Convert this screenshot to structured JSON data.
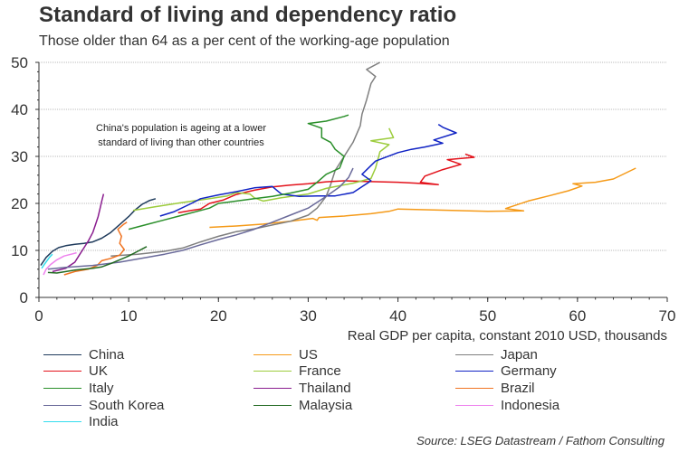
{
  "chart_data": {
    "type": "line",
    "title": "Standard of living and dependency ratio",
    "subtitle": "Those older than 64 as a per cent of the working-age population",
    "xlabel": "Real GDP per capita, constant 2010 USD, thousands",
    "ylabel": "",
    "xlim": [
      0,
      70
    ],
    "ylim": [
      0,
      50
    ],
    "xticks": [
      0,
      10,
      20,
      30,
      40,
      50,
      60,
      70
    ],
    "yticks": [
      0,
      10,
      20,
      30,
      40,
      50
    ],
    "grid": "horizontal-dotted",
    "legend_position": "bottom",
    "annotation": [
      "China's population is ageing at a lower",
      "standard of living than other countries"
    ],
    "source": "Source: LSEG Datastream / Fathom Consulting",
    "series": [
      {
        "name": "China",
        "color": "#1f3b5c",
        "points": [
          [
            0.2,
            6.8
          ],
          [
            0.8,
            8.5
          ],
          [
            1.5,
            9.8
          ],
          [
            2.2,
            10.6
          ],
          [
            3,
            11
          ],
          [
            4,
            11.3
          ],
          [
            5,
            11.5
          ],
          [
            6,
            11.8
          ],
          [
            7,
            12.6
          ],
          [
            8,
            13.8
          ],
          [
            9,
            15.5
          ],
          [
            10,
            17.2
          ],
          [
            10.7,
            18.6
          ],
          [
            11.5,
            19.8
          ],
          [
            12.3,
            20.6
          ],
          [
            13,
            21
          ]
        ]
      },
      {
        "name": "US",
        "color": "#f59a18",
        "points": [
          [
            19,
            14.9
          ],
          [
            22,
            15.2
          ],
          [
            25,
            15.6
          ],
          [
            28,
            16.2
          ],
          [
            30.5,
            16.8
          ],
          [
            31,
            16.4
          ],
          [
            31.2,
            17
          ],
          [
            34,
            17.3
          ],
          [
            37,
            17.8
          ],
          [
            39,
            18.3
          ],
          [
            40,
            18.8
          ],
          [
            42,
            18.7
          ],
          [
            46,
            18.5
          ],
          [
            50,
            18.3
          ],
          [
            54,
            18.4
          ],
          [
            52,
            18.9
          ],
          [
            54.5,
            20.5
          ],
          [
            57,
            21.7
          ],
          [
            59,
            22.7
          ],
          [
            60.5,
            23.7
          ],
          [
            59.5,
            24.2
          ],
          [
            62,
            24.5
          ],
          [
            64,
            25.2
          ],
          [
            66.5,
            27.5
          ]
        ]
      },
      {
        "name": "Japan",
        "color": "#7f7f7f",
        "points": [
          [
            8,
            8.8
          ],
          [
            11,
            9.2
          ],
          [
            14,
            9.8
          ],
          [
            16,
            10.5
          ],
          [
            18,
            11.8
          ],
          [
            20,
            13
          ],
          [
            22,
            14
          ],
          [
            24,
            14.6
          ],
          [
            26,
            15.4
          ],
          [
            28,
            16.2
          ],
          [
            30,
            17.5
          ],
          [
            31,
            19
          ],
          [
            32,
            21.5
          ],
          [
            32.5,
            24
          ],
          [
            33,
            27
          ],
          [
            34,
            30
          ],
          [
            35,
            33
          ],
          [
            35.8,
            36.5
          ],
          [
            36,
            39
          ],
          [
            36.5,
            42
          ],
          [
            37,
            45.5
          ],
          [
            37.5,
            47
          ],
          [
            36.5,
            48.5
          ],
          [
            38,
            50
          ]
        ]
      },
      {
        "name": "UK",
        "color": "#e3121b",
        "points": [
          [
            15.5,
            18
          ],
          [
            17,
            18.5
          ],
          [
            18,
            18.8
          ],
          [
            19,
            20
          ],
          [
            20.5,
            20.7
          ],
          [
            22,
            21.9
          ],
          [
            24,
            22.8
          ],
          [
            26,
            23.5
          ],
          [
            28,
            23.9
          ],
          [
            30,
            24.2
          ],
          [
            32,
            24.6
          ],
          [
            34,
            24.8
          ],
          [
            36,
            24.7
          ],
          [
            38,
            24.6
          ],
          [
            40,
            24.5
          ],
          [
            42,
            24.3
          ],
          [
            43,
            24.2
          ],
          [
            44.5,
            24
          ],
          [
            42.5,
            24.5
          ],
          [
            43,
            25.8
          ],
          [
            45,
            27.2
          ],
          [
            47,
            28.3
          ],
          [
            45.5,
            29.3
          ],
          [
            48.5,
            29.8
          ],
          [
            47.5,
            30.5
          ]
        ]
      },
      {
        "name": "France",
        "color": "#9ccc3c",
        "points": [
          [
            10.5,
            18.5
          ],
          [
            13,
            19.3
          ],
          [
            16,
            20.2
          ],
          [
            19,
            21
          ],
          [
            21,
            21.6
          ],
          [
            22,
            22.3
          ],
          [
            23.5,
            22
          ],
          [
            24,
            21.2
          ],
          [
            25,
            20.5
          ],
          [
            27,
            21.2
          ],
          [
            30,
            22
          ],
          [
            32,
            23.2
          ],
          [
            35,
            24.3
          ],
          [
            37,
            25.3
          ],
          [
            37.5,
            27.5
          ],
          [
            38,
            31
          ],
          [
            39,
            32.5
          ],
          [
            37,
            33.3
          ],
          [
            39.5,
            34
          ],
          [
            39,
            36
          ]
        ]
      },
      {
        "name": "Germany",
        "color": "#1023c4",
        "points": [
          [
            13.5,
            17.3
          ],
          [
            15,
            18.2
          ],
          [
            17,
            20
          ],
          [
            18,
            21
          ],
          [
            20,
            21.8
          ],
          [
            22,
            22.5
          ],
          [
            24,
            23.3
          ],
          [
            26,
            23.6
          ],
          [
            26.5,
            22.8
          ],
          [
            27,
            22
          ],
          [
            29,
            21.5
          ],
          [
            31,
            21.6
          ],
          [
            33,
            21.6
          ],
          [
            35,
            22.3
          ],
          [
            37,
            24.8
          ],
          [
            36,
            26.2
          ],
          [
            37.5,
            29
          ],
          [
            40,
            30.8
          ],
          [
            41.5,
            31.5
          ],
          [
            43,
            32
          ],
          [
            45,
            32.8
          ],
          [
            44,
            33.5
          ],
          [
            46.5,
            35
          ],
          [
            45,
            36.2
          ],
          [
            44.5,
            36.8
          ]
        ]
      },
      {
        "name": "Italy",
        "color": "#2a8f2a",
        "points": [
          [
            10,
            14.5
          ],
          [
            12,
            15.5
          ],
          [
            14,
            16.5
          ],
          [
            16,
            17.5
          ],
          [
            18,
            18.5
          ],
          [
            19,
            19
          ],
          [
            20,
            20
          ],
          [
            22,
            20.5
          ],
          [
            24,
            21
          ],
          [
            26,
            21.5
          ],
          [
            28,
            22.2
          ],
          [
            30,
            23
          ],
          [
            31,
            24.5
          ],
          [
            32,
            26.2
          ],
          [
            33.5,
            27.5
          ],
          [
            34,
            30
          ],
          [
            33,
            31.5
          ],
          [
            32.5,
            33
          ],
          [
            31.5,
            34
          ],
          [
            31.5,
            36
          ],
          [
            30,
            37
          ],
          [
            32,
            37.5
          ],
          [
            34,
            38.5
          ],
          [
            34.5,
            38.8
          ]
        ]
      },
      {
        "name": "Thailand",
        "color": "#8a1d8f",
        "points": [
          [
            1.5,
            5.5
          ],
          [
            3,
            6.2
          ],
          [
            4,
            7.5
          ],
          [
            4.5,
            9
          ],
          [
            5,
            10.5
          ],
          [
            5.5,
            12
          ],
          [
            6,
            13.8
          ],
          [
            6.3,
            15.5
          ],
          [
            6.6,
            17.2
          ],
          [
            6.8,
            18.8
          ],
          [
            7,
            20.5
          ],
          [
            7.2,
            22
          ]
        ]
      },
      {
        "name": "Brazil",
        "color": "#f07422",
        "points": [
          [
            2.8,
            4.8
          ],
          [
            4,
            5.5
          ],
          [
            5.5,
            6
          ],
          [
            6.5,
            6.8
          ],
          [
            7,
            7.8
          ],
          [
            8,
            8.3
          ],
          [
            9,
            9
          ],
          [
            9.5,
            10.2
          ],
          [
            9,
            11.5
          ],
          [
            9.2,
            13
          ],
          [
            8.8,
            14.5
          ],
          [
            9.4,
            15.5
          ],
          [
            9.8,
            16
          ]
        ]
      },
      {
        "name": "South Korea",
        "color": "#6a6a9a",
        "points": [
          [
            1,
            6
          ],
          [
            3,
            6.4
          ],
          [
            6,
            6.8
          ],
          [
            9,
            7.5
          ],
          [
            12,
            8.5
          ],
          [
            14,
            9.2
          ],
          [
            16,
            10
          ],
          [
            18,
            11.2
          ],
          [
            20,
            12.3
          ],
          [
            22,
            13.3
          ],
          [
            24,
            14.5
          ],
          [
            26,
            16
          ],
          [
            28,
            17.5
          ],
          [
            30,
            19
          ],
          [
            32,
            21.5
          ],
          [
            33.5,
            23.5
          ],
          [
            34.5,
            25.5
          ],
          [
            35,
            27.5
          ]
        ]
      },
      {
        "name": "Malaysia",
        "color": "#236b23",
        "points": [
          [
            1,
            5.3
          ],
          [
            2,
            5.2
          ],
          [
            3,
            5.5
          ],
          [
            4,
            5.8
          ],
          [
            5,
            6
          ],
          [
            6,
            6.2
          ],
          [
            7,
            6.5
          ],
          [
            8,
            7.2
          ],
          [
            9,
            8
          ],
          [
            10,
            8.8
          ],
          [
            11,
            9.8
          ],
          [
            11.5,
            10.3
          ],
          [
            12,
            10.8
          ]
        ]
      },
      {
        "name": "Indonesia",
        "color": "#ee82ee",
        "points": [
          [
            0.5,
            4.8
          ],
          [
            0.8,
            6
          ],
          [
            1.3,
            7
          ],
          [
            2,
            8
          ],
          [
            2.8,
            8.8
          ],
          [
            3.6,
            9.2
          ],
          [
            4.2,
            9.5
          ]
        ]
      },
      {
        "name": "India",
        "color": "#33ddee",
        "points": [
          [
            0.3,
            6.2
          ],
          [
            0.6,
            7
          ],
          [
            0.9,
            7.8
          ],
          [
            1.2,
            8.6
          ],
          [
            1.5,
            9.2
          ]
        ]
      }
    ]
  }
}
